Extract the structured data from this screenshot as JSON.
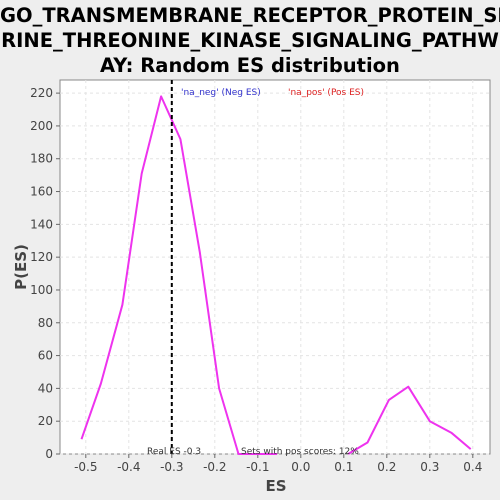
{
  "chart_data": {
    "type": "line",
    "title_lines": [
      "GO_TRANSMEMBRANE_RECEPTOR_PROTEIN_SE",
      "RINE_THREONINE_KINASE_SIGNALING_PATHW",
      "AY: Random ES distribution"
    ],
    "xlabel": "ES",
    "ylabel": "P(ES)",
    "xlim": [
      -0.56,
      0.44
    ],
    "ylim": [
      0,
      228
    ],
    "xticks": [
      -0.5,
      -0.4,
      -0.3,
      -0.2,
      -0.1,
      0.0,
      0.1,
      0.2,
      0.3,
      0.4
    ],
    "xtick_labels": [
      "-0.5",
      "-0.4",
      "-0.3",
      "-0.2",
      "-0.1",
      "0.0",
      "0.1",
      "0.2",
      "0.3",
      "0.4"
    ],
    "yticks": [
      0,
      20,
      40,
      60,
      80,
      100,
      120,
      140,
      160,
      180,
      200,
      220
    ],
    "grid": true,
    "series": [
      {
        "name": "'na_neg' (Neg ES)",
        "label_color": "#3333cc",
        "color": "#ee33ee",
        "x": [
          -0.51,
          -0.465,
          -0.415,
          -0.37,
          -0.325,
          -0.28,
          -0.235,
          -0.19,
          -0.145,
          -0.1,
          -0.055
        ],
        "y": [
          9,
          43,
          91,
          171,
          218,
          192,
          123,
          40,
          0,
          0,
          0
        ]
      },
      {
        "name": "'na_pos' (Pos ES)",
        "label_color": "#dd2222",
        "color": "#ee33ee",
        "x": [
          0.11,
          0.155,
          0.205,
          0.25,
          0.3,
          0.35,
          0.395
        ],
        "y": [
          0,
          7,
          33,
          41,
          20,
          13,
          3
        ]
      }
    ],
    "real_es": -0.3,
    "annotations": {
      "real_es": "Real ES -0.3",
      "pos_scores": "Sets with pos scores: 12%"
    }
  }
}
